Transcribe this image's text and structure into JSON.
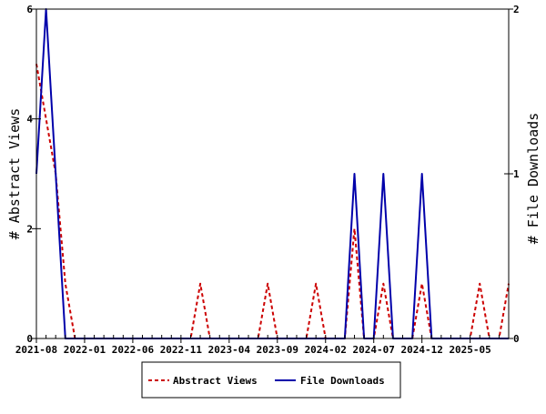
{
  "chart_data": {
    "type": "line",
    "x_tick_labels": [
      "2021-08",
      "2022-01",
      "2022-06",
      "2022-11",
      "2023-04",
      "2023-09",
      "2024-02",
      "2024-07",
      "2024-12",
      "2025-05"
    ],
    "y_left": {
      "label": "# Abstract Views",
      "ticks": [
        "0",
        "2",
        "4",
        "6"
      ],
      "range": [
        0,
        6
      ]
    },
    "y_right": {
      "label": "# File Downloads",
      "ticks": [
        "0",
        "1",
        "2"
      ],
      "range": [
        0,
        2
      ]
    },
    "x_range": [
      0,
      49
    ],
    "grid": false,
    "legend_position": "bottom-center",
    "series": [
      {
        "name": "Abstract Views",
        "axis": "left",
        "style": "dashed",
        "color": "#cc0000",
        "points": [
          [
            0,
            5
          ],
          [
            1,
            4
          ],
          [
            2,
            3
          ],
          [
            3,
            1
          ],
          [
            4,
            0
          ],
          [
            16,
            0
          ],
          [
            17,
            1
          ],
          [
            18,
            0
          ],
          [
            23,
            0
          ],
          [
            24,
            1
          ],
          [
            25,
            0
          ],
          [
            28,
            0
          ],
          [
            29,
            1
          ],
          [
            30,
            0
          ],
          [
            32,
            0
          ],
          [
            33,
            2
          ],
          [
            34,
            0
          ],
          [
            35,
            0
          ],
          [
            36,
            1
          ],
          [
            37,
            0
          ],
          [
            39,
            0
          ],
          [
            40,
            1
          ],
          [
            41,
            0
          ],
          [
            45,
            0
          ],
          [
            46,
            1
          ],
          [
            47,
            0
          ],
          [
            48,
            0
          ],
          [
            49,
            1
          ]
        ]
      },
      {
        "name": "File Downloads",
        "axis": "right",
        "style": "solid",
        "color": "#0000aa",
        "points": [
          [
            0,
            1
          ],
          [
            1,
            2
          ],
          [
            2,
            1
          ],
          [
            3,
            0
          ],
          [
            32,
            0
          ],
          [
            33,
            1
          ],
          [
            34,
            0
          ],
          [
            35,
            0
          ],
          [
            36,
            1
          ],
          [
            37,
            0
          ],
          [
            39,
            0
          ],
          [
            40,
            1
          ],
          [
            41,
            0
          ],
          [
            49,
            0
          ]
        ]
      }
    ]
  }
}
